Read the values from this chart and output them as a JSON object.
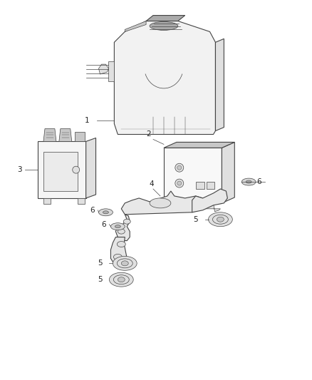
{
  "background_color": "#ffffff",
  "line_color": "#444444",
  "fill_light": "#f2f2f2",
  "fill_mid": "#e0e0e0",
  "fill_dark": "#c8c8c8",
  "fill_darker": "#aaaaaa",
  "text_color": "#222222",
  "figsize": [
    4.38,
    5.33
  ],
  "dpi": 100,
  "label_fontsize": 7.5,
  "leader_color": "#333333"
}
